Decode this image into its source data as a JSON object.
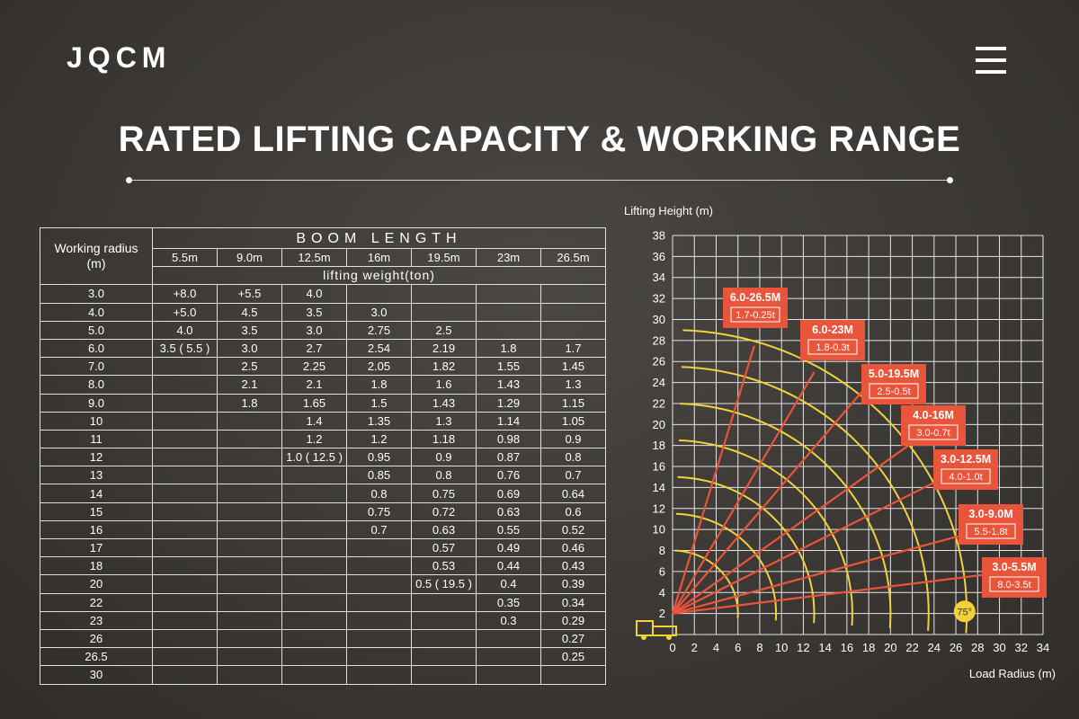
{
  "header": {
    "logo": "JQCM",
    "title": "RATED LIFTING CAPACITY & WORKING RANGE"
  },
  "table": {
    "radius_header": [
      "Working radius",
      "(m)"
    ],
    "boom_header": "BOOM LENGTH",
    "weight_header": "lifting weight(ton)",
    "columns": [
      "5.5m",
      "9.0m",
      "12.5m",
      "16m",
      "19.5m",
      "23m",
      "26.5m"
    ],
    "rows": [
      {
        "r": "3.0",
        "v": [
          "+8.0",
          "+5.5",
          "4.0",
          "",
          "",
          "",
          ""
        ]
      },
      {
        "r": "4.0",
        "v": [
          "+5.0",
          "4.5",
          "3.5",
          "3.0",
          "",
          "",
          ""
        ]
      },
      {
        "r": "5.0",
        "v": [
          "4.0",
          "3.5",
          "3.0",
          "2.75",
          "2.5",
          "",
          ""
        ]
      },
      {
        "r": "6.0",
        "v": [
          "3.5 ( 5.5 )",
          "3.0",
          "2.7",
          "2.54",
          "2.19",
          "1.8",
          "1.7"
        ]
      },
      {
        "r": "7.0",
        "v": [
          "",
          "2.5",
          "2.25",
          "2.05",
          "1.82",
          "1.55",
          "1.45"
        ]
      },
      {
        "r": "8.0",
        "v": [
          "",
          "2.1",
          "2.1",
          "1.8",
          "1.6",
          "1.43",
          "1.3"
        ]
      },
      {
        "r": "9.0",
        "v": [
          "",
          "1.8",
          "1.65",
          "1.5",
          "1.43",
          "1.29",
          "1.15"
        ]
      },
      {
        "r": "10",
        "v": [
          "",
          "",
          "1.4",
          "1.35",
          "1.3",
          "1.14",
          "1.05"
        ]
      },
      {
        "r": "11",
        "v": [
          "",
          "",
          "1.2",
          "1.2",
          "1.18",
          "0.98",
          "0.9"
        ]
      },
      {
        "r": "12",
        "v": [
          "",
          "",
          "1.0 ( 12.5 )",
          "0.95",
          "0.9",
          "0.87",
          "0.8"
        ]
      },
      {
        "r": "13",
        "v": [
          "",
          "",
          "",
          "0.85",
          "0.8",
          "0.76",
          "0.7"
        ]
      },
      {
        "r": "14",
        "v": [
          "",
          "",
          "",
          "0.8",
          "0.75",
          "0.69",
          "0.64"
        ]
      },
      {
        "r": "15",
        "v": [
          "",
          "",
          "",
          "0.75",
          "0.72",
          "0.63",
          "0.6"
        ]
      },
      {
        "r": "16",
        "v": [
          "",
          "",
          "",
          "0.7",
          "0.63",
          "0.55",
          "0.52"
        ]
      },
      {
        "r": "17",
        "v": [
          "",
          "",
          "",
          "",
          "0.57",
          "0.49",
          "0.46"
        ]
      },
      {
        "r": "18",
        "v": [
          "",
          "",
          "",
          "",
          "0.53",
          "0.44",
          "0.43"
        ]
      },
      {
        "r": "20",
        "v": [
          "",
          "",
          "",
          "",
          "0.5 ( 19.5 )",
          "0.4",
          "0.39"
        ]
      },
      {
        "r": "22",
        "v": [
          "",
          "",
          "",
          "",
          "",
          "0.35",
          "0.34"
        ]
      },
      {
        "r": "23",
        "v": [
          "",
          "",
          "",
          "",
          "",
          "0.3",
          "0.29"
        ]
      },
      {
        "r": "26",
        "v": [
          "",
          "",
          "",
          "",
          "",
          "",
          "0.27"
        ]
      },
      {
        "r": "26.5",
        "v": [
          "",
          "",
          "",
          "",
          "",
          "",
          "0.25"
        ]
      },
      {
        "r": "30",
        "v": [
          "",
          "",
          "",
          "",
          "",
          "",
          ""
        ]
      }
    ]
  },
  "chart_data": {
    "type": "line",
    "ylabel": "Lifting Height (m)",
    "xlabel": "Load Radius (m)",
    "xlim": [
      0,
      34
    ],
    "ylim": [
      0,
      38
    ],
    "x_ticks": [
      0,
      2,
      4,
      6,
      8,
      10,
      12,
      14,
      16,
      18,
      20,
      22,
      24,
      26,
      28,
      30,
      32,
      34
    ],
    "y_ticks": [
      2,
      4,
      6,
      8,
      10,
      12,
      14,
      16,
      18,
      20,
      22,
      24,
      26,
      28,
      30,
      32,
      34,
      36,
      38
    ],
    "grid": true,
    "pivot": [
      0,
      2
    ],
    "arcs_radius": [
      6,
      9.5,
      13,
      16.5,
      20,
      23.5,
      27
    ],
    "max_angle_label": "75°",
    "colors": {
      "arc": "#f2d23a",
      "boom": "#e8553a",
      "label_bg": "#e8553a"
    },
    "booms": [
      {
        "label": "6.0-26.5M",
        "sub": "1.7-0.25t",
        "end": [
          7.5,
          27.5
        ]
      },
      {
        "label": "6.0-23M",
        "sub": "1.8-0.3t",
        "end": [
          13,
          25
        ]
      },
      {
        "label": "5.0-19.5M",
        "sub": "2.5-0.5t",
        "end": [
          18.5,
          24.5
        ]
      },
      {
        "label": "4.0-16M",
        "sub": "3.0-0.7t",
        "end": [
          23,
          19
        ]
      },
      {
        "label": "3.0-12.5M",
        "sub": "4.0-1.0t",
        "end": [
          26,
          15.5
        ]
      },
      {
        "label": "3.0-9.0M",
        "sub": "5.5-1.8t",
        "end": [
          28.5,
          10
        ]
      },
      {
        "label": "3.0-5.5M",
        "sub": "8.0-3.5t",
        "end": [
          31,
          6
        ]
      }
    ]
  }
}
